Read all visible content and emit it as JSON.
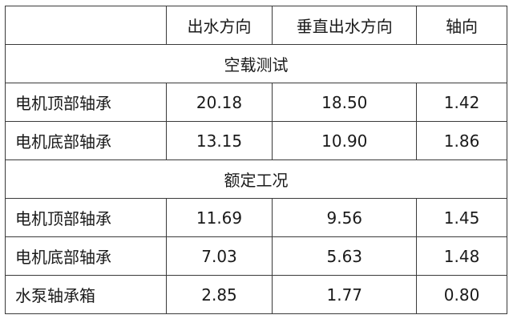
{
  "table": {
    "headers": [
      "",
      "出水方向",
      "垂直出水方向",
      "轴向"
    ],
    "sections": [
      {
        "title": "空载测试",
        "rows": [
          {
            "label": "电机顶部轴承",
            "values": [
              "20.18",
              "18.50",
              "1.42"
            ]
          },
          {
            "label": "电机底部轴承",
            "values": [
              "13.15",
              "10.90",
              "1.86"
            ]
          }
        ]
      },
      {
        "title": "额定工况",
        "rows": [
          {
            "label": "电机顶部轴承",
            "values": [
              "11.69",
              "9.56",
              "1.45"
            ]
          },
          {
            "label": "电机底部轴承",
            "values": [
              "7.03",
              "5.63",
              "1.48"
            ]
          },
          {
            "label": "水泵轴承箱",
            "values": [
              "2.85",
              "1.77",
              "0.80"
            ]
          }
        ]
      }
    ]
  }
}
